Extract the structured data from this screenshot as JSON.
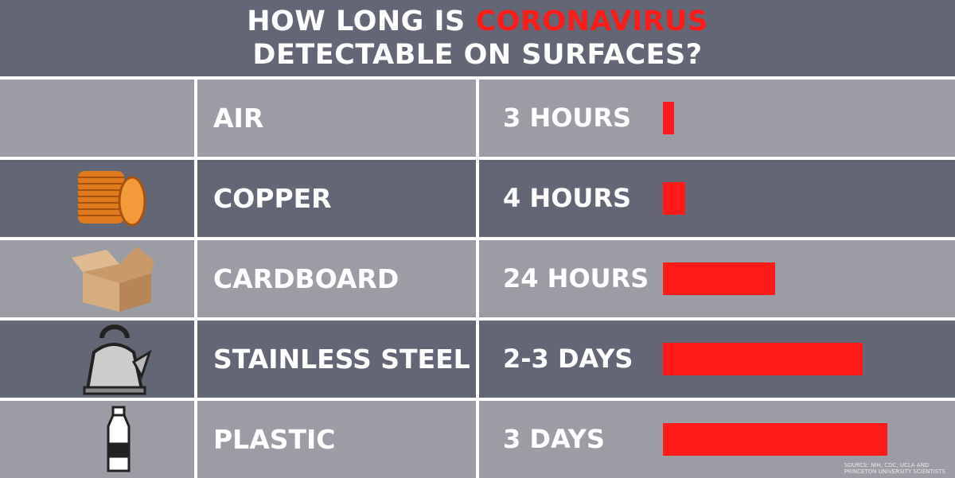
{
  "title": {
    "line1_prefix": "HOW LONG IS ",
    "line1_highlight": "CORONAVIRUS",
    "line2": "DETECTABLE ON SURFACES?"
  },
  "colors": {
    "highlight": "#ff1a1a",
    "dark_row": "#636675",
    "light_row": "#9c9ca5"
  },
  "chart_data": {
    "type": "bar",
    "orientation": "horizontal",
    "categories": [
      "AIR",
      "COPPER",
      "CARDBOARD",
      "STAINLESS STEEL",
      "PLASTIC"
    ],
    "value_labels": [
      "3 HOURS",
      "4 HOURS",
      "24 HOURS",
      "2-3 DAYS",
      "3 DAYS"
    ],
    "values_hours": [
      3,
      4,
      24,
      60,
      72
    ],
    "relative_bar_length": [
      0.05,
      0.1,
      0.5,
      0.89,
      1.0
    ],
    "icons": [
      "wind-icon",
      "copper-coins-icon",
      "cardboard-box-icon",
      "kettle-icon",
      "plastic-bottle-icon"
    ],
    "bar_color": "#ff1a1a"
  },
  "source": {
    "line1": "SOURCE: NIH, CDC, UCLA AND",
    "line2": "PRINCETON UNIVERSITY SCIENTISTS"
  }
}
